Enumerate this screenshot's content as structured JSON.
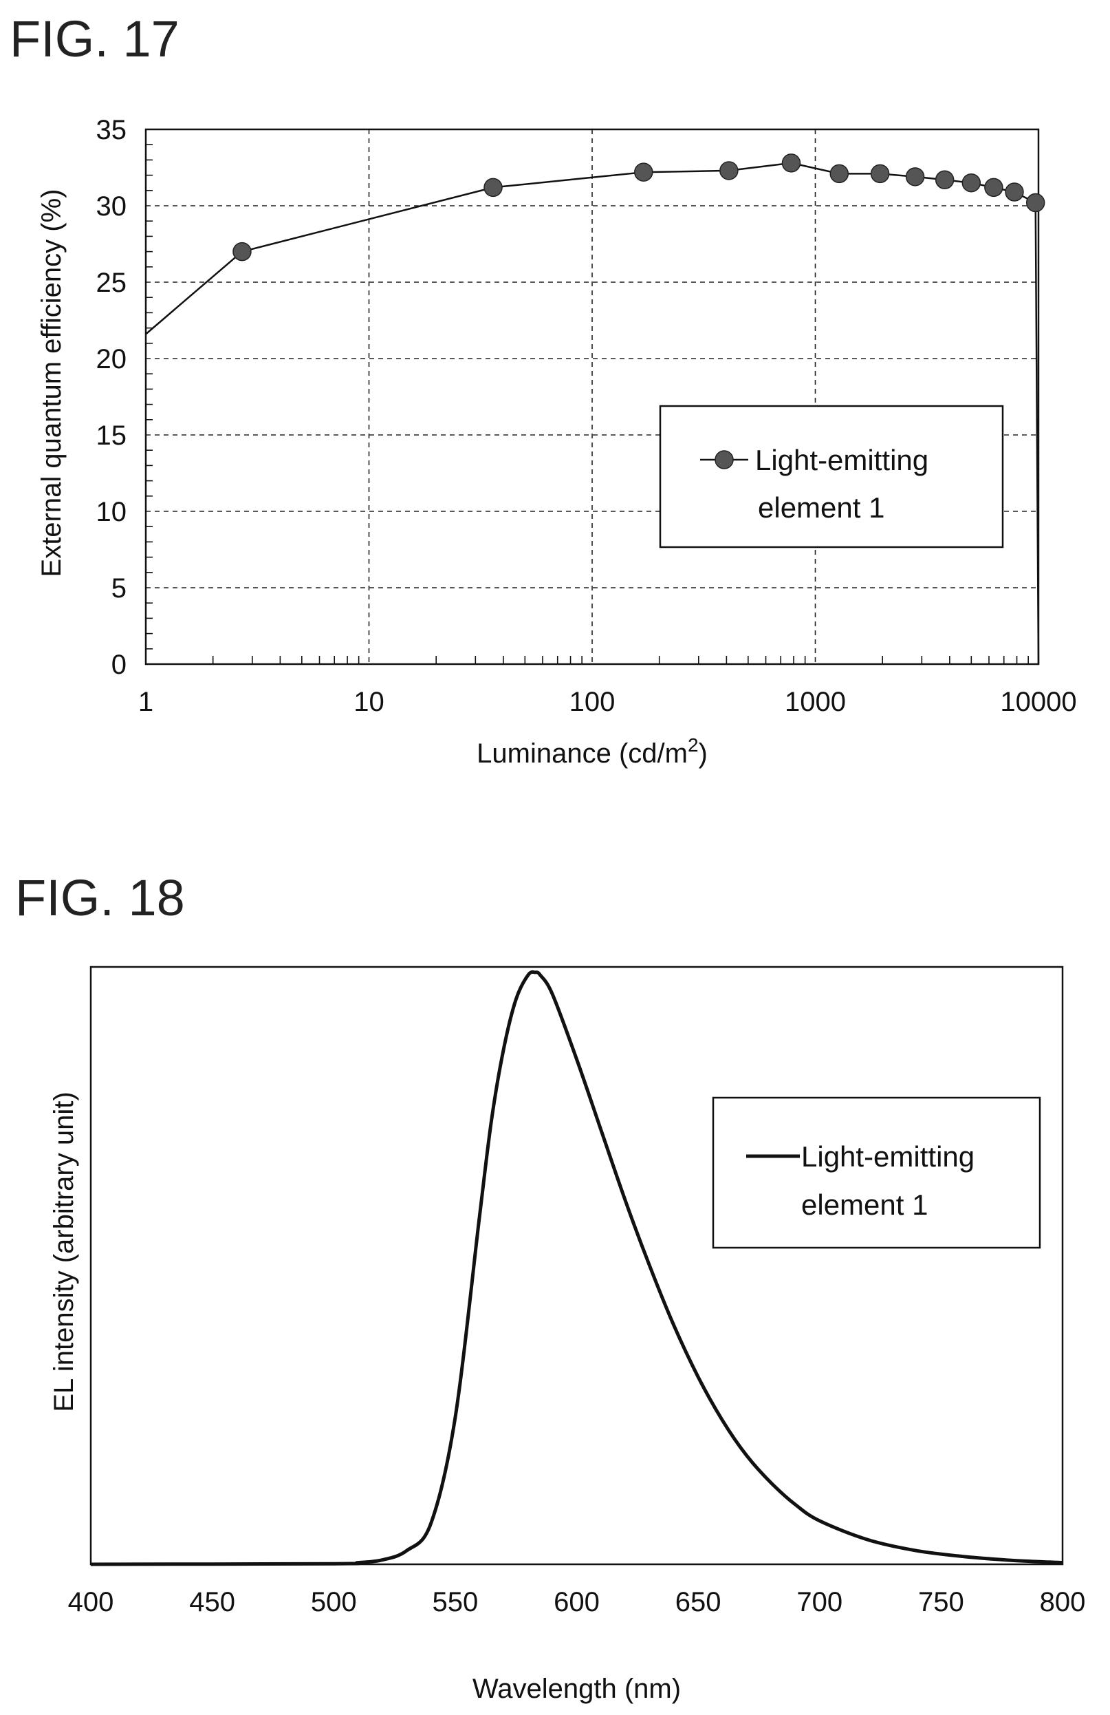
{
  "figures": [
    {
      "label": "FIG. 17"
    },
    {
      "label": "FIG. 18"
    }
  ],
  "chart_data": [
    {
      "type": "line",
      "xscale": "log",
      "xlim": [
        1,
        10000
      ],
      "ylim": [
        0,
        35
      ],
      "xticks": [
        "1",
        "10",
        "100",
        "1000",
        "10000"
      ],
      "yticks": [
        "0",
        "5",
        "10",
        "15",
        "20",
        "25",
        "30",
        "35"
      ],
      "xlabel": "Luminance (cd/m",
      "xlabel_sup": "2",
      "xlabel_end": ")",
      "ylabel": "External quantum efficiency (%)",
      "grid": true,
      "legend_position": "center-right",
      "legend_lines": [
        "Light-emitting",
        "element 1"
      ],
      "color": "#111111",
      "marker_color": "#555555",
      "series": [
        {
          "name": "Light-emitting element 1",
          "marker": "circle",
          "x": [
            1,
            2.7,
            36,
            170,
            410,
            780,
            1280,
            1950,
            2800,
            3800,
            5000,
            6300,
            7800,
            9700
          ],
          "y": [
            21.6,
            27.0,
            31.2,
            32.2,
            32.3,
            32.8,
            32.1,
            32.1,
            31.9,
            31.7,
            31.5,
            31.2,
            30.9,
            30.2
          ]
        }
      ]
    },
    {
      "type": "line",
      "xscale": "linear",
      "xlim": [
        400,
        800
      ],
      "ylim": [
        0,
        1.1
      ],
      "xticks": [
        "400",
        "450",
        "500",
        "550",
        "600",
        "650",
        "700",
        "750",
        "800"
      ],
      "yticks": [],
      "xlabel": "Wavelength (nm)",
      "ylabel": "EL intensity (arbitrary unit)",
      "grid": false,
      "legend_position": "upper-right",
      "legend_lines": [
        "Light-emitting",
        "element 1"
      ],
      "color": "#111111",
      "series": [
        {
          "name": "Light-emitting element 1",
          "x": [
            400,
            500,
            510,
            520,
            530,
            540,
            550,
            560,
            565,
            570,
            575,
            580,
            583,
            585,
            590,
            600,
            610,
            620,
            630,
            640,
            650,
            660,
            670,
            680,
            690,
            700,
            720,
            740,
            760,
            780,
            800
          ],
          "y": [
            0,
            0.001,
            0.003,
            0.008,
            0.025,
            0.075,
            0.27,
            0.64,
            0.82,
            0.95,
            1.04,
            1.085,
            1.09,
            1.085,
            1.05,
            0.93,
            0.8,
            0.67,
            0.55,
            0.44,
            0.345,
            0.265,
            0.2,
            0.15,
            0.11,
            0.08,
            0.045,
            0.025,
            0.014,
            0.007,
            0.003
          ]
        }
      ]
    }
  ]
}
